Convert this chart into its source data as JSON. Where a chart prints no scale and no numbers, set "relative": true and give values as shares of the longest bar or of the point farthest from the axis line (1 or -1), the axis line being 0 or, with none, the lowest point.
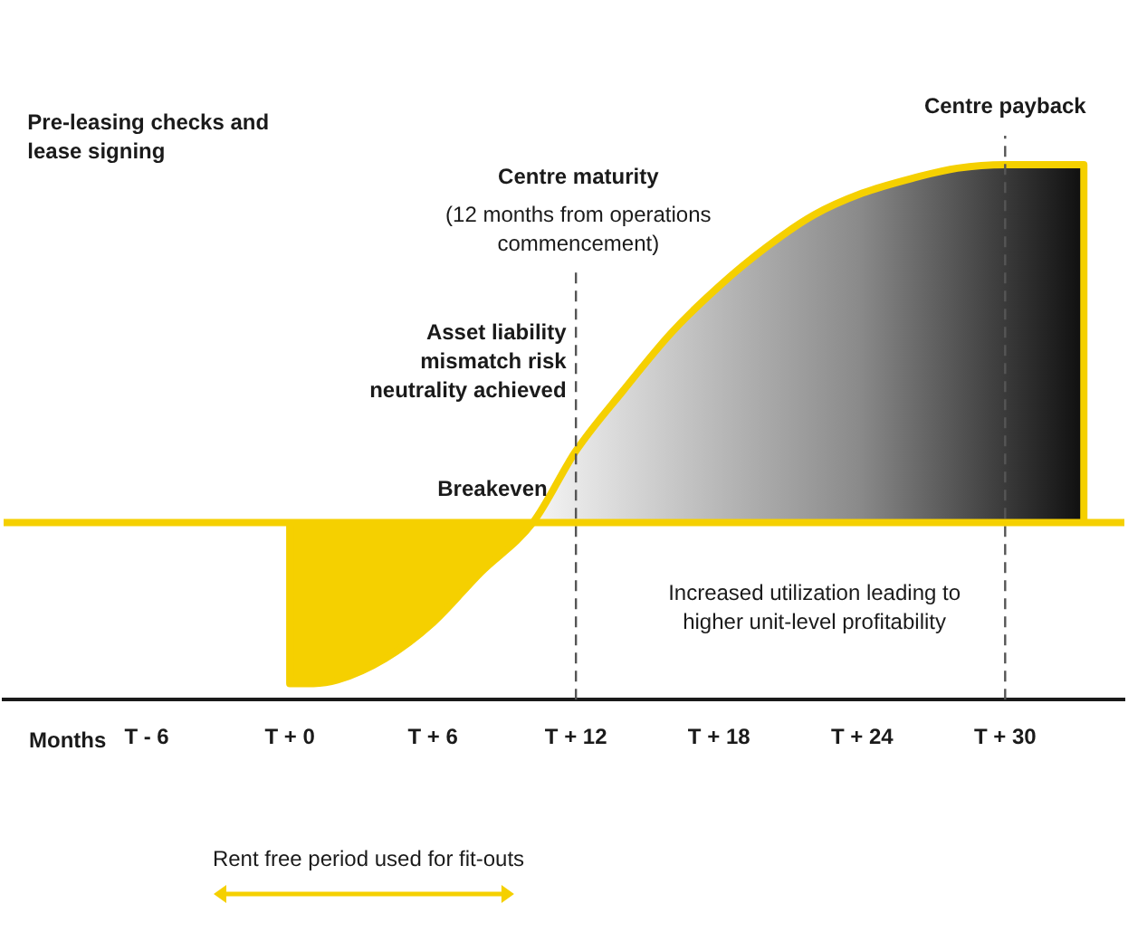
{
  "chart_data": {
    "type": "area",
    "relative": true,
    "xlabel": "Months",
    "x": [
      0,
      0,
      1,
      2,
      4,
      6,
      8,
      10.2,
      12,
      14,
      16,
      18,
      20,
      22,
      24,
      26,
      28,
      30,
      33.3,
      33.3
    ],
    "series": [
      {
        "color": "#f5d000",
        "values": [
          0,
          -0.45,
          -0.45,
          -0.44,
          -0.38,
          -0.28,
          -0.14,
          0,
          0.2,
          0.37,
          0.53,
          0.66,
          0.77,
          0.86,
          0.92,
          0.96,
          0.99,
          1,
          1,
          0
        ]
      }
    ],
    "xlim": [
      -12,
      35
    ],
    "xticks": [
      {
        "value": -6,
        "label": "T - 6"
      },
      {
        "value": 0,
        "label": "T + 0"
      },
      {
        "value": 6,
        "label": "T + 6"
      },
      {
        "value": 12,
        "label": "T + 12"
      },
      {
        "value": 18,
        "label": "T + 18"
      },
      {
        "value": 24,
        "label": "T + 24"
      },
      {
        "value": 30,
        "label": "T + 30"
      }
    ],
    "tick_labels": "x",
    "grid": false,
    "legend": false,
    "marker": "none",
    "ref_lines": [
      {
        "axis": "y",
        "value": 0,
        "label": "Breakeven",
        "color": "#f5d000"
      },
      {
        "axis": "x",
        "value": 12,
        "label": "Asset liability mismatch risk neutrality achieved",
        "color": "#555555",
        "line_style": "dashed"
      },
      {
        "axis": "x",
        "value": 30,
        "label": "Centre payback",
        "color": "#555555",
        "line_style": "dashed"
      }
    ],
    "annotations": [
      "Pre-leasing checks and lease signing",
      "Centre maturity",
      "(12 months from operations commencement)",
      "Increased utilization leading to higher unit-level profitability",
      "Rent free period used for fit-outs"
    ]
  }
}
